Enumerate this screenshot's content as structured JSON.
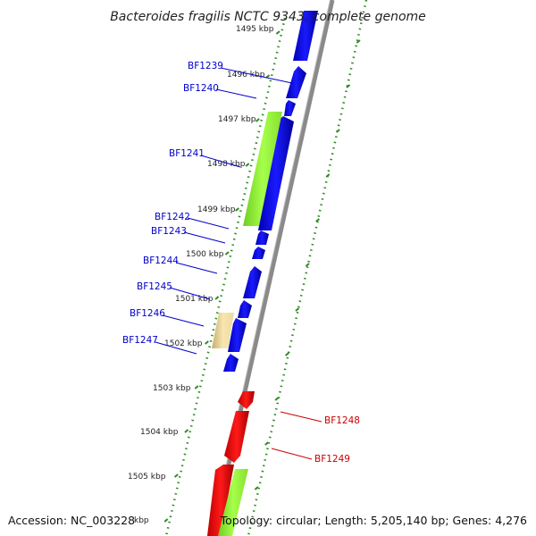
{
  "title": "Bacteroides fragilis NCTC 9343, complete genome",
  "accession": "Accession: NC_003228",
  "summary": "Topology: circular; Length: 5,205,140 bp; Genes: 4,276",
  "colors": {
    "backbone": "#808080",
    "forward_gene": "#0000ee",
    "reverse_gene": "#ff0000",
    "highlight_green": "#99ff33",
    "highlight_tan": "#f5dfa0",
    "tick_dots": "#228b22",
    "label_blue": "#0000cc",
    "label_red": "#cc0000"
  },
  "ticks": [
    "1495 kbp",
    "1496 kbp",
    "1497 kbp",
    "1498 kbp",
    "1499 kbp",
    "1500 kbp",
    "1501 kbp",
    "1502 kbp",
    "1503 kbp",
    "1504 kbp",
    "1505 kbp",
    "kbp"
  ],
  "gene_labels_forward": [
    "BF1239",
    "BF1240",
    "BF1241",
    "BF1242",
    "BF1243",
    "BF1244",
    "BF1245",
    "BF1246",
    "BF1247"
  ],
  "gene_labels_reverse": [
    "BF1248",
    "BF1249"
  ]
}
